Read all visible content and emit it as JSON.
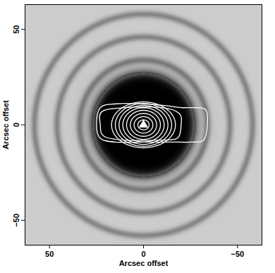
{
  "chart_data": {
    "type": "contour",
    "xlabel": "Arcsec offset",
    "ylabel": "Arcsec offset",
    "xlim": [
      63,
      -63
    ],
    "ylim": [
      -63,
      63
    ],
    "xticks": [
      50,
      0,
      -50
    ],
    "yticks": [
      50,
      0,
      -50
    ],
    "color": "white",
    "marker": "triangle",
    "source": {
      "x": 0,
      "y": 0
    },
    "image": {
      "core_radius": 27,
      "ring_radii": [
        34,
        46,
        58
      ]
    },
    "contour_ellipses": [
      {
        "a": 3,
        "b": 2.6
      },
      {
        "a": 5,
        "b": 4.3
      },
      {
        "a": 7,
        "b": 6
      },
      {
        "a": 9,
        "b": 7.6
      },
      {
        "a": 11,
        "b": 9
      },
      {
        "a": 13,
        "b": 10.2
      },
      {
        "a": 15,
        "b": 11.2
      },
      {
        "a": 17,
        "b": 12
      }
    ],
    "contour_outlines": [
      [
        [
          22,
          7
        ],
        [
          10,
          9
        ],
        [
          -10,
          9
        ],
        [
          -19,
          6
        ],
        [
          -20,
          0
        ],
        [
          -18,
          -7
        ],
        [
          -8,
          -8
        ],
        [
          10,
          -8
        ],
        [
          21,
          -6
        ],
        [
          23,
          0
        ]
      ],
      [
        [
          23,
          9
        ],
        [
          15,
          11
        ],
        [
          0,
          11
        ],
        [
          -12,
          10
        ],
        [
          -20,
          9
        ],
        [
          -26,
          9
        ],
        [
          -33,
          8
        ],
        [
          -34,
          0
        ],
        [
          -32,
          -8
        ],
        [
          -25,
          -9
        ],
        [
          -15,
          -9
        ],
        [
          0,
          -9
        ],
        [
          15,
          -9
        ],
        [
          23,
          -7
        ],
        [
          25,
          0
        ]
      ]
    ]
  }
}
